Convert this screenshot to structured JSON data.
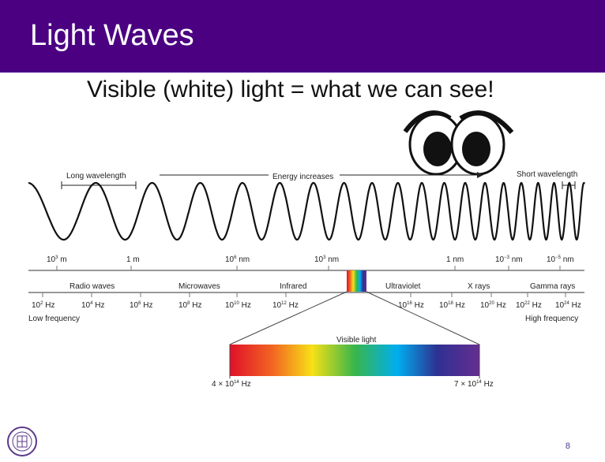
{
  "slide": {
    "title": "Light Waves",
    "subtitle": "Visible (white) light = what we can see!",
    "page_number": "8",
    "title_bar_color": "#4b0082"
  },
  "diagram": {
    "long_wavelength_label": "Long wavelength",
    "energy_label": "Energy increases",
    "short_wavelength_label": "Short wavelength",
    "wavelength_scale": [
      {
        "base": "10",
        "exp": "3",
        "unit": "m"
      },
      {
        "base": "1",
        "exp": "",
        "unit": "m"
      },
      {
        "base": "10",
        "exp": "6",
        "unit": "nm"
      },
      {
        "base": "10",
        "exp": "3",
        "unit": "nm"
      },
      {
        "base": "1",
        "exp": "",
        "unit": "nm"
      },
      {
        "base": "10",
        "exp": "−3",
        "unit": "nm"
      },
      {
        "base": "10",
        "exp": "−5",
        "unit": "nm"
      }
    ],
    "bands": [
      "Radio waves",
      "Microwaves",
      "Infrared",
      "Ultraviolet",
      "X rays",
      "Gamma rays"
    ],
    "frequency_scale": [
      {
        "base": "10",
        "exp": "2",
        "unit": "Hz"
      },
      {
        "base": "10",
        "exp": "4",
        "unit": "Hz"
      },
      {
        "base": "10",
        "exp": "6",
        "unit": "Hz"
      },
      {
        "base": "10",
        "exp": "8",
        "unit": "Hz"
      },
      {
        "base": "10",
        "exp": "10",
        "unit": "Hz"
      },
      {
        "base": "10",
        "exp": "12",
        "unit": "Hz"
      },
      {
        "base": "10",
        "exp": "16",
        "unit": "Hz"
      },
      {
        "base": "10",
        "exp": "18",
        "unit": "Hz"
      },
      {
        "base": "10",
        "exp": "20",
        "unit": "Hz"
      },
      {
        "base": "10",
        "exp": "22",
        "unit": "Hz"
      },
      {
        "base": "10",
        "exp": "24",
        "unit": "Hz"
      }
    ],
    "low_frequency_label": "Low frequency",
    "high_frequency_label": "High frequency",
    "visible_light_label": "Visible light",
    "visible_low": {
      "prefix": "4 × 10",
      "exp": "14",
      "unit": "Hz"
    },
    "visible_high": {
      "prefix": "7 × 10",
      "exp": "14",
      "unit": "Hz"
    }
  }
}
